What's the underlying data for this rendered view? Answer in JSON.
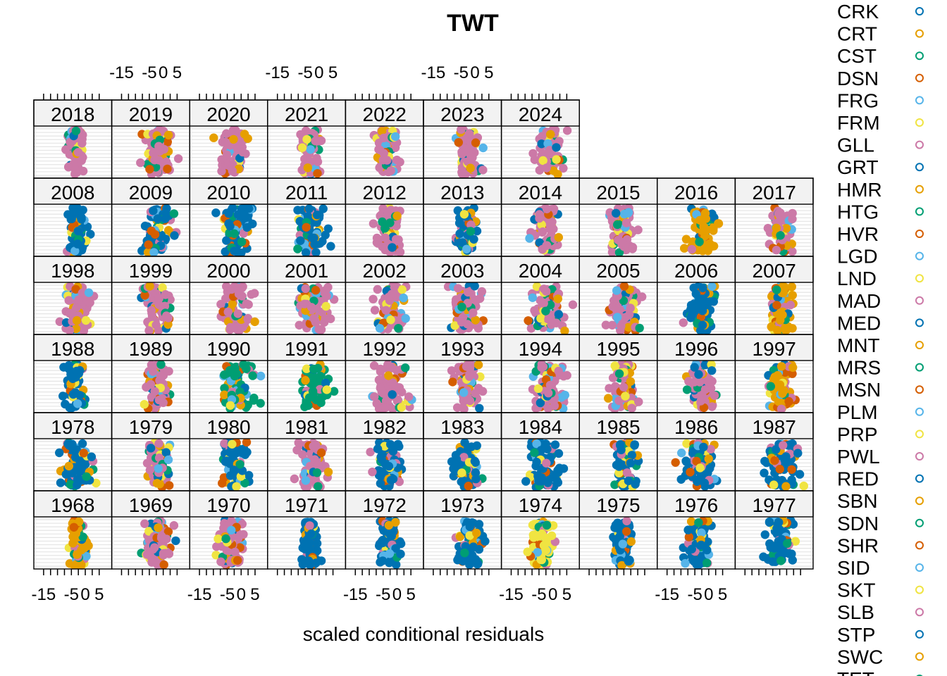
{
  "chart_data": {
    "type": "scatter",
    "title": "TWT",
    "xlabel": "scaled conditional residuals",
    "ylabel": "",
    "xlim": [
      -17,
      8
    ],
    "x_ticks": [
      -15,
      -5,
      0,
      5
    ],
    "x_tick_labels": [
      "-15",
      "-5",
      "0",
      "5"
    ],
    "layout": {
      "columns": 10,
      "rows": 6
    },
    "panel_rows": [
      [
        "1968",
        "1969",
        "1970",
        "1971",
        "1972",
        "1973",
        "1974",
        "1975",
        "1976",
        "1977"
      ],
      [
        "1978",
        "1979",
        "1980",
        "1981",
        "1982",
        "1983",
        "1984",
        "1985",
        "1986",
        "1987"
      ],
      [
        "1988",
        "1989",
        "1990",
        "1991",
        "1992",
        "1993",
        "1994",
        "1995",
        "1996",
        "1997"
      ],
      [
        "1998",
        "1999",
        "2000",
        "2001",
        "2002",
        "2003",
        "2004",
        "2005",
        "2006",
        "2007"
      ],
      [
        "2008",
        "2009",
        "2010",
        "2011",
        "2012",
        "2013",
        "2014",
        "2015",
        "2016",
        "2017"
      ],
      [
        "2018",
        "2019",
        "2020",
        "2021",
        "2022",
        "2023",
        "2024"
      ]
    ],
    "panel_settings": {
      "1968": {
        "center": -2.5,
        "spread": 1.6,
        "dominant": 0
      },
      "1969": {
        "center": -1.5,
        "spread": 2.4,
        "dominant": 3
      },
      "1970": {
        "center": -3.0,
        "spread": 2.6,
        "dominant": 3
      },
      "1971": {
        "center": -3.5,
        "spread": 1.4,
        "dominant": 2
      },
      "1972": {
        "center": -3.0,
        "spread": 1.8,
        "dominant": 2
      },
      "1973": {
        "center": -2.0,
        "spread": 2.2,
        "dominant": 2
      },
      "1974": {
        "center": -4.0,
        "spread": 2.0,
        "dominant": 1
      },
      "1975": {
        "center": -3.0,
        "spread": 1.8,
        "dominant": 2
      },
      "1976": {
        "center": -4.0,
        "spread": 2.4,
        "dominant": 2
      },
      "1977": {
        "center": -2.5,
        "spread": 2.6,
        "dominant": 2
      },
      "1978": {
        "center": -3.0,
        "spread": 2.8,
        "dominant": 2
      },
      "1979": {
        "center": -2.0,
        "spread": 2.4,
        "dominant": 3
      },
      "1980": {
        "center": -2.5,
        "spread": 2.4,
        "dominant": 2
      },
      "1981": {
        "center": -2.0,
        "spread": 2.6,
        "dominant": 3
      },
      "1982": {
        "center": -3.0,
        "spread": 2.6,
        "dominant": 2
      },
      "1983": {
        "center": -3.0,
        "spread": 2.4,
        "dominant": 2
      },
      "1984": {
        "center": -3.0,
        "spread": 3.0,
        "dominant": 2
      },
      "1985": {
        "center": -2.5,
        "spread": 2.2,
        "dominant": 2
      },
      "1986": {
        "center": -3.0,
        "spread": 3.4,
        "dominant": 2
      },
      "1987": {
        "center": -2.0,
        "spread": 3.0,
        "dominant": 2
      },
      "1988": {
        "center": -4.0,
        "spread": 1.8,
        "dominant": 2
      },
      "1989": {
        "center": -2.0,
        "spread": 2.2,
        "dominant": 3
      },
      "1990": {
        "center": -1.5,
        "spread": 3.0,
        "dominant": 4
      },
      "1991": {
        "center": -1.0,
        "spread": 2.4,
        "dominant": 4
      },
      "1992": {
        "center": -2.5,
        "spread": 3.0,
        "dominant": 3
      },
      "1993": {
        "center": -2.5,
        "spread": 2.4,
        "dominant": 3
      },
      "1994": {
        "center": -2.0,
        "spread": 3.0,
        "dominant": 3
      },
      "1995": {
        "center": -2.5,
        "spread": 2.4,
        "dominant": 3
      },
      "1996": {
        "center": -2.0,
        "spread": 2.6,
        "dominant": 3
      },
      "1997": {
        "center": -2.0,
        "spread": 2.4,
        "dominant": 0
      },
      "1998": {
        "center": -3.0,
        "spread": 2.6,
        "dominant": 3
      },
      "1999": {
        "center": -2.0,
        "spread": 2.4,
        "dominant": 3
      },
      "2000": {
        "center": -2.0,
        "spread": 2.6,
        "dominant": 3
      },
      "2001": {
        "center": -2.5,
        "spread": 3.0,
        "dominant": 3
      },
      "2002": {
        "center": -2.0,
        "spread": 3.0,
        "dominant": 3
      },
      "2003": {
        "center": -3.0,
        "spread": 2.6,
        "dominant": 3
      },
      "2004": {
        "center": -2.0,
        "spread": 3.0,
        "dominant": 3
      },
      "2005": {
        "center": -2.0,
        "spread": 3.0,
        "dominant": 3
      },
      "2006": {
        "center": -2.5,
        "spread": 2.4,
        "dominant": 2
      },
      "2007": {
        "center": -2.0,
        "spread": 2.2,
        "dominant": 0
      },
      "2008": {
        "center": -3.0,
        "spread": 2.0,
        "dominant": 2
      },
      "2009": {
        "center": -2.0,
        "spread": 2.6,
        "dominant": 2
      },
      "2010": {
        "center": -2.0,
        "spread": 2.8,
        "dominant": 2
      },
      "2011": {
        "center": -3.0,
        "spread": 2.6,
        "dominant": 2
      },
      "2012": {
        "center": -3.0,
        "spread": 2.2,
        "dominant": 3
      },
      "2013": {
        "center": -3.0,
        "spread": 1.6,
        "dominant": 2
      },
      "2014": {
        "center": -2.5,
        "spread": 2.2,
        "dominant": 3
      },
      "2015": {
        "center": -3.0,
        "spread": 2.4,
        "dominant": 3
      },
      "2016": {
        "center": -2.5,
        "spread": 2.6,
        "dominant": 0
      },
      "2017": {
        "center": -1.5,
        "spread": 2.4,
        "dominant": 3
      },
      "2018": {
        "center": -3.5,
        "spread": 1.6,
        "dominant": 3
      },
      "2019": {
        "center": -1.5,
        "spread": 2.6,
        "dominant": 3
      },
      "2020": {
        "center": -3.0,
        "spread": 2.2,
        "dominant": 3
      },
      "2021": {
        "center": -3.0,
        "spread": 1.8,
        "dominant": 3
      },
      "2022": {
        "center": -3.5,
        "spread": 2.0,
        "dominant": 3
      },
      "2023": {
        "center": -2.5,
        "spread": 2.2,
        "dominant": 3
      },
      "2024": {
        "center": -1.0,
        "spread": 2.6,
        "dominant": 3
      }
    },
    "series": [
      {
        "name": "CRK",
        "color": "#0072B2"
      },
      {
        "name": "CRT",
        "color": "#E69F00"
      },
      {
        "name": "CST",
        "color": "#009E73"
      },
      {
        "name": "DSN",
        "color": "#D55E00"
      },
      {
        "name": "FRG",
        "color": "#56B4E9"
      },
      {
        "name": "FRM",
        "color": "#F0E442"
      },
      {
        "name": "GLL",
        "color": "#CC79A7"
      },
      {
        "name": "GRT",
        "color": "#0072B2"
      },
      {
        "name": "HMR",
        "color": "#E69F00"
      },
      {
        "name": "HTG",
        "color": "#009E73"
      },
      {
        "name": "HVR",
        "color": "#D55E00"
      },
      {
        "name": "LGD",
        "color": "#56B4E9"
      },
      {
        "name": "LND",
        "color": "#F0E442"
      },
      {
        "name": "MAD",
        "color": "#CC79A7"
      },
      {
        "name": "MED",
        "color": "#0072B2"
      },
      {
        "name": "MNT",
        "color": "#E69F00"
      },
      {
        "name": "MRS",
        "color": "#009E73"
      },
      {
        "name": "MSN",
        "color": "#D55E00"
      },
      {
        "name": "PLM",
        "color": "#56B4E9"
      },
      {
        "name": "PRP",
        "color": "#F0E442"
      },
      {
        "name": "PWL",
        "color": "#CC79A7"
      },
      {
        "name": "RED",
        "color": "#0072B2"
      },
      {
        "name": "SBN",
        "color": "#E69F00"
      },
      {
        "name": "SDN",
        "color": "#009E73"
      },
      {
        "name": "SHR",
        "color": "#D55E00"
      },
      {
        "name": "SID",
        "color": "#56B4E9"
      },
      {
        "name": "SKT",
        "color": "#F0E442"
      },
      {
        "name": "SLB",
        "color": "#CC79A7"
      },
      {
        "name": "STP",
        "color": "#0072B2"
      },
      {
        "name": "SWC",
        "color": "#E69F00"
      },
      {
        "name": "TET",
        "color": "#009E73"
      }
    ],
    "palette": [
      "#E69F00",
      "#F0E442",
      "#0072B2",
      "#CC79A7",
      "#009E73",
      "#56B4E9",
      "#D55E00"
    ],
    "legend_position": "right"
  }
}
